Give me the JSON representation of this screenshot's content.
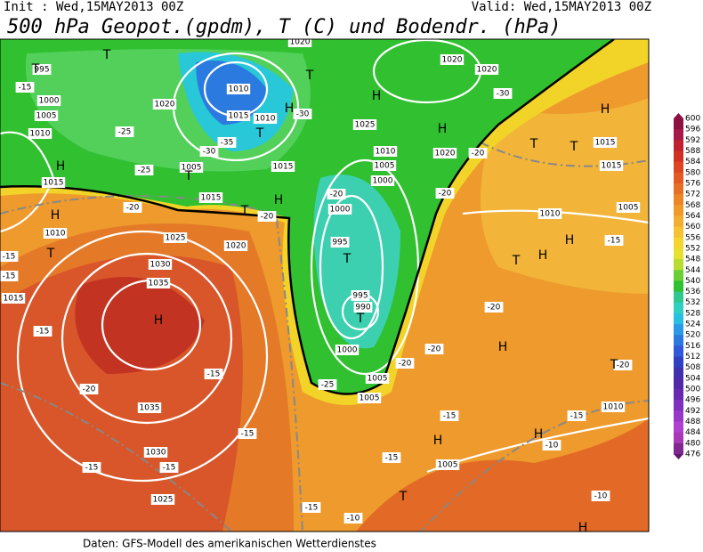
{
  "header": {
    "init": "Init : Wed,15MAY2013 00Z",
    "valid": "Valid: Wed,15MAY2013 00Z",
    "title": "500 hPa Geopot.(gpdm), T (C) und Bodendr. (hPa)"
  },
  "colorbar": {
    "labels": [
      "600",
      "596",
      "592",
      "588",
      "584",
      "580",
      "576",
      "572",
      "568",
      "564",
      "560",
      "556",
      "552",
      "548",
      "544",
      "540",
      "536",
      "532",
      "528",
      "524",
      "520",
      "516",
      "512",
      "508",
      "504",
      "500",
      "496",
      "492",
      "488",
      "484",
      "480",
      "476"
    ]
  },
  "map": {
    "pressure_labels": [
      "995",
      "1000",
      "1005",
      "1010",
      "1015",
      "1010",
      "1015",
      "1020",
      "1010",
      "1015",
      "1010",
      "1005",
      "1015",
      "1015",
      "1020",
      "1025",
      "1030",
      "1035",
      "1035",
      "1030",
      "1025",
      "1025",
      "1020",
      "1020",
      "1010",
      "1005",
      "1000",
      "1000",
      "995",
      "995",
      "990",
      "1000",
      "1005",
      "1005",
      "1020",
      "1015",
      "1015",
      "1010",
      "1005",
      "1010",
      "1005",
      "1020"
    ],
    "temperature_labels": [
      "-15",
      "-25",
      "-25",
      "-30",
      "-30",
      "-35",
      "-20",
      "-20",
      "-20",
      "-20",
      "-20",
      "-30",
      "-15",
      "-15",
      "-15",
      "-20",
      "-15",
      "-15",
      "-15",
      "-15",
      "-15",
      "-10",
      "-15",
      "-15",
      "-20",
      "-20",
      "-20",
      "-15",
      "-10",
      "-10",
      "-20",
      "-15",
      "-25"
    ],
    "highs": [
      "H",
      "H",
      "H",
      "H",
      "H",
      "H",
      "H",
      "H",
      "H",
      "H",
      "H",
      "H",
      "H",
      "H"
    ],
    "lows": [
      "T",
      "T",
      "T",
      "T",
      "T",
      "T",
      "T",
      "T",
      "T",
      "T",
      "T",
      "T",
      "T",
      "T"
    ]
  },
  "footer": "Daten: GFS-Modell des amerikanischen Wetterdienstes"
}
